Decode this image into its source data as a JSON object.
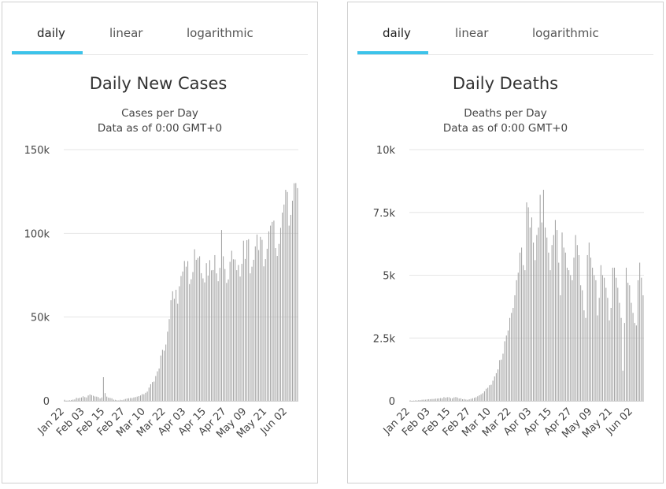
{
  "theme": {
    "accent": "#3cc3ea",
    "bar_color": "#a5a5a5",
    "grid_color": "#e6e6e6",
    "text_color": "#333333"
  },
  "panels": [
    {
      "tabs": [
        {
          "label": "daily",
          "active": true
        },
        {
          "label": "linear",
          "active": false
        },
        {
          "label": "logarithmic",
          "active": false
        }
      ],
      "chart_data": {
        "type": "bar",
        "title": "Daily New Cases",
        "subtitle_lines": [
          "Cases per Day",
          "Data as of 0:00 GMT+0"
        ],
        "y_tick_labels": [
          "0",
          "50k",
          "100k",
          "150k"
        ],
        "y_ticks": [
          0,
          50000,
          100000,
          150000
        ],
        "ylim": [
          0,
          150000
        ],
        "x_tick_labels": [
          "Jan 22",
          "Feb 03",
          "Feb 15",
          "Feb 27",
          "Mar 10",
          "Mar 22",
          "Apr 03",
          "Apr 15",
          "Apr 27",
          "May 09",
          "May 21",
          "Jun 02"
        ],
        "x_tick_every": 12,
        "grid": true,
        "values": [
          600,
          100,
          200,
          300,
          500,
          700,
          800,
          1800,
          1500,
          1800,
          2000,
          2700,
          2200,
          2000,
          3200,
          3800,
          3400,
          3000,
          2600,
          2500,
          2200,
          1400,
          2000,
          14100,
          4600,
          2500,
          1900,
          1700,
          1500,
          700,
          600,
          400,
          200,
          600,
          400,
          700,
          1100,
          1400,
          1500,
          1700,
          1600,
          2000,
          2200,
          2500,
          2800,
          3200,
          4000,
          3900,
          4800,
          5500,
          7900,
          9900,
          11200,
          11500,
          14800,
          17600,
          19300,
          27000,
          30500,
          29900,
          33600,
          41300,
          48800,
          60100,
          65400,
          60900,
          66300,
          58000,
          68400,
          74500,
          77200,
          83500,
          80100,
          83400,
          69700,
          72600,
          76900,
          90500,
          84200,
          85300,
          86300,
          76200,
          73100,
          70700,
          82200,
          74800,
          84000,
          77900,
          78100,
          87000,
          76100,
          71400,
          79400,
          102000,
          86300,
          78700,
          70400,
          72500,
          83000,
          89600,
          84500,
          84400,
          78000,
          81100,
          74200,
          81800,
          95600,
          84700,
          95900,
          96500,
          76100,
          80100,
          84200,
          92200,
          99300,
          90000,
          97900,
          96100,
          80300,
          84600,
          90800,
          101200,
          104600,
          106800,
          107600,
          91200,
          86500,
          93700,
          103300,
          112400,
          117200,
          126000,
          124700,
          104600,
          111000,
          119500,
          129900,
          130000,
          127000
        ]
      }
    },
    {
      "tabs": [
        {
          "label": "daily",
          "active": true
        },
        {
          "label": "linear",
          "active": false
        },
        {
          "label": "logarithmic",
          "active": false
        }
      ],
      "chart_data": {
        "type": "bar",
        "title": "Daily Deaths",
        "subtitle_lines": [
          "Deaths per Day",
          "Data as of 0:00 GMT+0"
        ],
        "y_tick_labels": [
          "0",
          "2.5k",
          "5k",
          "7.5k",
          "10k"
        ],
        "y_ticks": [
          0,
          2500,
          5000,
          7500,
          10000
        ],
        "ylim": [
          0,
          10000
        ],
        "x_tick_labels": [
          "Jan 22",
          "Feb 03",
          "Feb 15",
          "Feb 27",
          "Mar 10",
          "Mar 22",
          "Apr 03",
          "Apr 15",
          "Apr 27",
          "May 09",
          "May 21",
          "Jun 02"
        ],
        "x_tick_every": 12,
        "grid": true,
        "values": [
          17,
          1,
          8,
          16,
          14,
          26,
          26,
          42,
          46,
          45,
          57,
          64,
          66,
          73,
          73,
          86,
          89,
          97,
          108,
          97,
          146,
          121,
          143,
          142,
          105,
          98,
          136,
          150,
          130,
          90,
          100,
          60,
          70,
          50,
          40,
          60,
          80,
          100,
          120,
          140,
          180,
          220,
          260,
          300,
          380,
          480,
          520,
          620,
          640,
          800,
          970,
          1100,
          1250,
          1620,
          1640,
          1880,
          2370,
          2600,
          2800,
          3300,
          3500,
          3700,
          4200,
          4800,
          5100,
          5900,
          6100,
          5400,
          5200,
          7900,
          7700,
          6900,
          7300,
          6300,
          5600,
          6600,
          6900,
          8200,
          7100,
          8400,
          6900,
          6500,
          5900,
          5200,
          6200,
          6600,
          7200,
          6800,
          5500,
          4200,
          6700,
          6100,
          5900,
          5300,
          5200,
          5000,
          4800,
          5700,
          6600,
          6200,
          5800,
          4600,
          4400,
          3600,
          3300,
          5800,
          6300,
          5700,
          5300,
          5000,
          4800,
          3400,
          4100,
          5400,
          5000,
          4900,
          4500,
          4100,
          3200,
          3700,
          5300,
          5300,
          4900,
          4500,
          3900,
          3300,
          1200,
          3100,
          5300,
          4700,
          4600,
          3900,
          3500,
          3100,
          3000,
          4800,
          5500,
          4900,
          4200
        ]
      }
    }
  ]
}
